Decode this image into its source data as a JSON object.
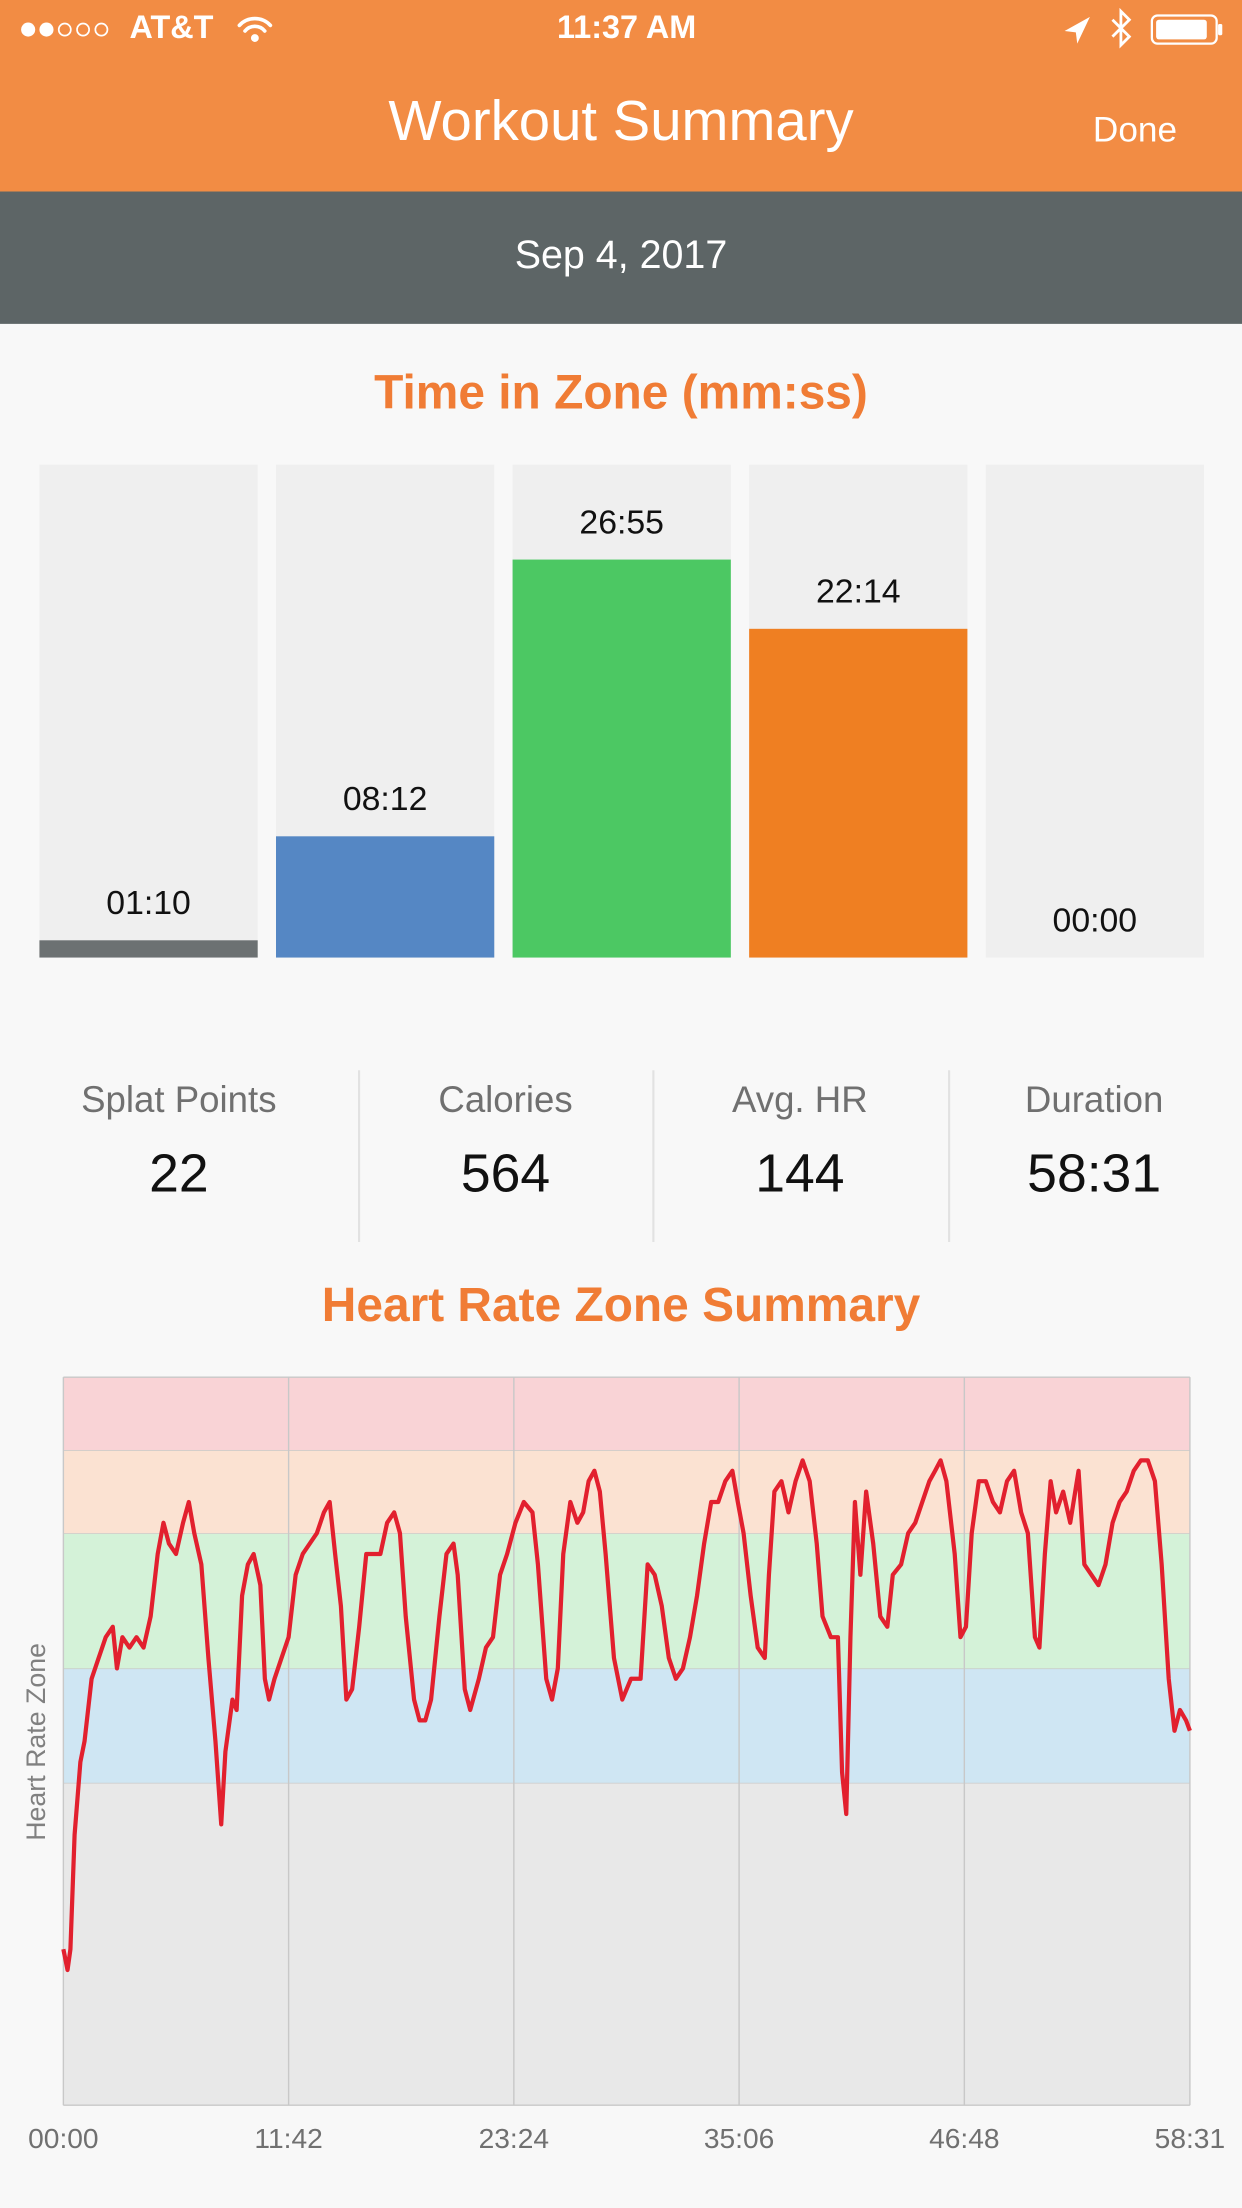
{
  "status_bar": {
    "carrier": "AT&T",
    "time": "11:37 AM"
  },
  "nav": {
    "title": "Workout Summary",
    "done": "Done"
  },
  "date": "Sep 4, 2017",
  "stats": [
    {
      "label": "Splat Points",
      "value": 22
    },
    {
      "label": "Calories",
      "value": 564
    },
    {
      "label": "Avg. HR",
      "value": 144
    },
    {
      "label": "Duration",
      "value": "58:31"
    }
  ],
  "chart_data": [
    {
      "type": "bar",
      "title": "Time in Zone (mm:ss)",
      "categories": [
        null,
        null,
        null,
        null,
        null
      ],
      "values": [
        70,
        492,
        1615,
        1334,
        0
      ],
      "value_labels": [
        "01:10",
        "08:12",
        "26:55",
        "22:14",
        "00:00"
      ],
      "colors": [
        "#6c7172",
        "#5587c4",
        "#4cc863",
        "#ef7f22",
        "#e0e0e0"
      ],
      "ylim": [
        0,
        2000
      ]
    },
    {
      "type": "line",
      "title": "Heart Rate Zone Summary",
      "y_label": "Heart Rate Zone",
      "color": "#e2202e",
      "xlim": [
        0,
        3511
      ],
      "ylim": [
        30,
        100
      ],
      "xticks": [
        {
          "value": 0,
          "label": "00:00"
        },
        {
          "value": 702,
          "label": "11:42"
        },
        {
          "value": 1404,
          "label": "23:24"
        },
        {
          "value": 2106,
          "label": "35:06"
        },
        {
          "value": 2808,
          "label": "46:48"
        },
        {
          "value": 3511,
          "label": "58:31"
        }
      ],
      "zones": [
        {
          "from": 30,
          "to": 61,
          "color": "#e8e8e8"
        },
        {
          "from": 61,
          "to": 72,
          "color": "#cfe6f3"
        },
        {
          "from": 72,
          "to": 85,
          "color": "#d4f2d8"
        },
        {
          "from": 85,
          "to": 93,
          "color": "#fbe2d2"
        },
        {
          "from": 93,
          "to": 100,
          "color": "#f9d3d6"
        }
      ],
      "grid": true,
      "x": [
        0,
        13,
        22,
        35,
        53,
        66,
        88,
        110,
        132,
        154,
        167,
        184,
        206,
        228,
        250,
        272,
        294,
        312,
        329,
        351,
        373,
        391,
        408,
        430,
        452,
        474,
        492,
        505,
        527,
        540,
        557,
        575,
        593,
        614,
        628,
        641,
        658,
        680,
        702,
        724,
        746,
        768,
        790,
        812,
        830,
        847,
        865,
        882,
        900,
        922,
        944,
        966,
        988,
        1009,
        1031,
        1049,
        1067,
        1093,
        1110,
        1128,
        1146,
        1172,
        1194,
        1216,
        1229,
        1251,
        1268,
        1295,
        1317,
        1339,
        1361,
        1383,
        1409,
        1435,
        1462,
        1479,
        1505,
        1523,
        1541,
        1558,
        1580,
        1602,
        1620,
        1637,
        1655,
        1672,
        1690,
        1716,
        1742,
        1769,
        1799,
        1821,
        1843,
        1865,
        1887,
        1909,
        1931,
        1953,
        1975,
        1997,
        2019,
        2041,
        2063,
        2085,
        2102,
        2120,
        2142,
        2164,
        2186,
        2199,
        2216,
        2238,
        2260,
        2282,
        2304,
        2326,
        2348,
        2366,
        2392,
        2414,
        2427,
        2440,
        2453,
        2467,
        2484,
        2502,
        2524,
        2546,
        2568,
        2585,
        2611,
        2633,
        2655,
        2677,
        2699,
        2717,
        2734,
        2752,
        2778,
        2796,
        2813,
        2831,
        2853,
        2875,
        2897,
        2919,
        2941,
        2963,
        2985,
        3006,
        3028,
        3042,
        3059,
        3077,
        3094,
        3116,
        3138,
        3164,
        3182,
        3204,
        3226,
        3248,
        3270,
        3292,
        3314,
        3336,
        3358,
        3380,
        3402,
        3423,
        3445,
        3463,
        3480,
        3499,
        3511
      ],
      "values": [
        45,
        43,
        45,
        56,
        63,
        65,
        71,
        73,
        75,
        76,
        72,
        75,
        74,
        75,
        74,
        77,
        83,
        86,
        84,
        83,
        86,
        88,
        85,
        82,
        73,
        65,
        57,
        64,
        69,
        68,
        79,
        82,
        83,
        80,
        71,
        69,
        71,
        73,
        75,
        81,
        83,
        84,
        85,
        87,
        88,
        83,
        78,
        69,
        70,
        76,
        83,
        83,
        83,
        86,
        87,
        85,
        77,
        69,
        67,
        67,
        69,
        77,
        83,
        84,
        81,
        70,
        68,
        71,
        74,
        75,
        81,
        83,
        86,
        88,
        87,
        82,
        71,
        69,
        72,
        83,
        88,
        86,
        87,
        90,
        91,
        89,
        83,
        73,
        69,
        71,
        71,
        82,
        81,
        78,
        73,
        71,
        72,
        75,
        79,
        84,
        88,
        88,
        90,
        91,
        88,
        85,
        79,
        74,
        73,
        81,
        89,
        90,
        87,
        90,
        92,
        90,
        84,
        77,
        75,
        75,
        62,
        58,
        75,
        88,
        81,
        89,
        84,
        77,
        76,
        81,
        82,
        85,
        86,
        88,
        90,
        91,
        92,
        90,
        83,
        75,
        76,
        85,
        90,
        90,
        88,
        87,
        90,
        91,
        87,
        85,
        75,
        74,
        83,
        90,
        87,
        89,
        86,
        91,
        82,
        81,
        80,
        82,
        86,
        88,
        89,
        91,
        92,
        92,
        90,
        82,
        71,
        66,
        68,
        67,
        66
      ]
    }
  ]
}
